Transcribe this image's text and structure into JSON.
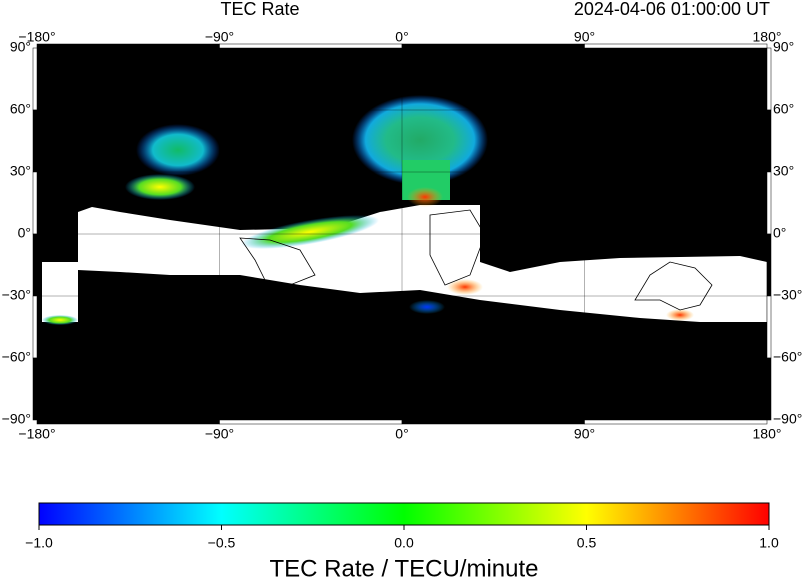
{
  "header": {
    "title": "TEC Rate",
    "time": "2024-04-06  01:00:00 UT"
  },
  "map": {
    "lonlim": [
      -180,
      180
    ],
    "latlim": [
      -90,
      90
    ],
    "lon_ticks": [
      {
        "value": -180,
        "label": "−180°"
      },
      {
        "value": -90,
        "label": "−90°"
      },
      {
        "value": 0,
        "label": "0°"
      },
      {
        "value": 90,
        "label": "90°"
      },
      {
        "value": 180,
        "label": "180°"
      }
    ],
    "lat_ticks": [
      {
        "value": 90,
        "label": "90°"
      },
      {
        "value": 60,
        "label": "60°"
      },
      {
        "value": 30,
        "label": "30°"
      },
      {
        "value": 0,
        "label": "0°"
      },
      {
        "value": -30,
        "label": "−30°"
      },
      {
        "value": -60,
        "label": "−60°"
      },
      {
        "value": -90,
        "label": "−90°"
      }
    ]
  },
  "colorbar": {
    "clim": [
      -1,
      1
    ],
    "ticks": [
      {
        "value": -1,
        "label": "−1.0"
      },
      {
        "value": -0.5,
        "label": "−0.5"
      },
      {
        "value": 0,
        "label": "0.0"
      },
      {
        "value": 0.5,
        "label": "0.5"
      },
      {
        "value": 1,
        "label": "1.0"
      }
    ],
    "label": "TEC Rate / TECU/minute"
  }
}
